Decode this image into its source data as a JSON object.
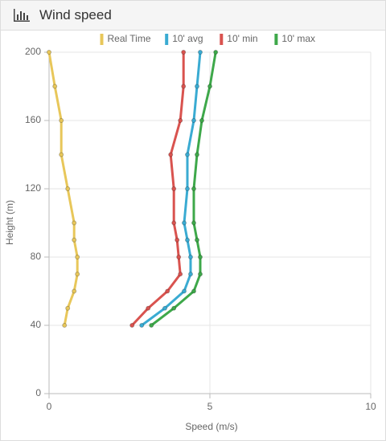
{
  "chart_data": {
    "type": "line",
    "title": "Wind speed",
    "x_label": "Speed (m/s)",
    "y_label": "Height (m)",
    "y": [
      40,
      50,
      60,
      70,
      80,
      90,
      100,
      120,
      140,
      160,
      180,
      200
    ],
    "series": [
      {
        "name": "Real Time",
        "color": "#e8c75a",
        "values": [
          0.48,
          0.58,
          0.78,
          0.88,
          0.88,
          0.78,
          0.78,
          0.58,
          0.38,
          0.38,
          0.18,
          0
        ]
      },
      {
        "name": "10' avg",
        "color": "#3aabd2",
        "values": [
          2.88,
          3.6,
          4.2,
          4.4,
          4.4,
          4.3,
          4.2,
          4.3,
          4.3,
          4.5,
          4.6,
          4.7
        ]
      },
      {
        "name": "10' min",
        "color": "#d9534f",
        "values": [
          2.58,
          3.08,
          3.68,
          4.08,
          4.03,
          3.98,
          3.88,
          3.88,
          3.78,
          4.08,
          4.18,
          4.18
        ]
      },
      {
        "name": "10' max",
        "color": "#3ea84a",
        "values": [
          3.18,
          3.88,
          4.5,
          4.7,
          4.7,
          4.6,
          4.5,
          4.5,
          4.6,
          4.75,
          5.0,
          5.18
        ]
      }
    ],
    "xlim": [
      0,
      10
    ],
    "xticks": [
      0,
      5,
      10
    ],
    "ylim": [
      0,
      200
    ],
    "yticks": [
      0,
      40,
      80,
      120,
      160,
      200
    ],
    "grid": true
  }
}
